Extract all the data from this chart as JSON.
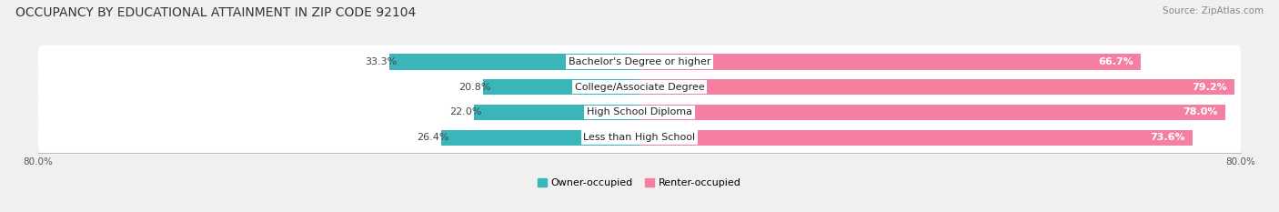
{
  "title": "OCCUPANCY BY EDUCATIONAL ATTAINMENT IN ZIP CODE 92104",
  "source": "Source: ZipAtlas.com",
  "categories": [
    "Less than High School",
    "High School Diploma",
    "College/Associate Degree",
    "Bachelor's Degree or higher"
  ],
  "owner_values": [
    26.4,
    22.0,
    20.8,
    33.3
  ],
  "renter_values": [
    73.6,
    78.0,
    79.2,
    66.7
  ],
  "owner_color": "#3ab5ba",
  "renter_color": "#f47fa0",
  "background_color": "#f0f0f0",
  "bar_bg_color": "#e0e0e0",
  "bar_fill_color": "#ffffff",
  "legend_owner": "Owner-occupied",
  "legend_renter": "Renter-occupied",
  "title_fontsize": 10,
  "source_fontsize": 7.5,
  "bar_height": 0.62,
  "label_fontsize": 8,
  "value_fontsize": 8,
  "xlim": 80
}
